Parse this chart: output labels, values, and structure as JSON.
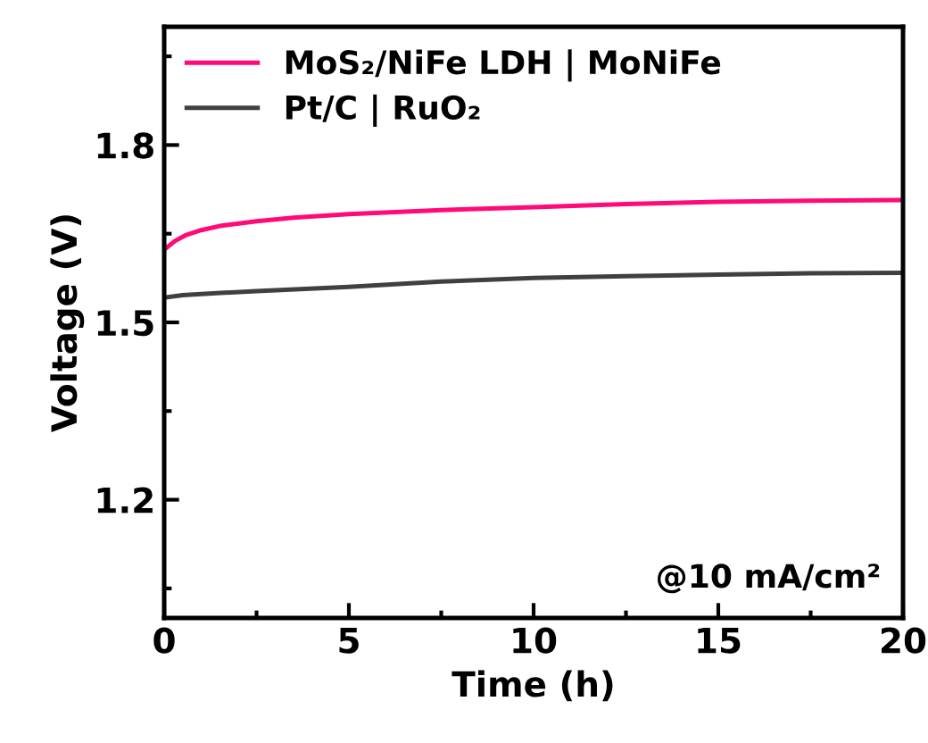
{
  "chart_data": {
    "type": "line",
    "xlabel": "Time (h)",
    "ylabel": "Voltage (V)",
    "annotations": [
      "@10 mA/cm²"
    ],
    "series": [
      {
        "name": "MoS₂/NiFe LDH | MoNiFe",
        "color": "#ff0a78",
        "x": [
          0,
          0.3,
          0.6,
          1,
          1.5,
          2.5,
          3.5,
          5,
          7.5,
          10,
          12.5,
          15,
          17.5,
          20
        ],
        "values": [
          1.623,
          1.638,
          1.648,
          1.656,
          1.663,
          1.671,
          1.677,
          1.683,
          1.69,
          1.695,
          1.7,
          1.704,
          1.706,
          1.707
        ]
      },
      {
        "name": "Pt/C | RuO₂",
        "color": "#404040",
        "x": [
          0,
          0.5,
          1,
          2.5,
          5,
          7.5,
          10,
          12.5,
          15,
          17.5,
          20
        ],
        "values": [
          1.542,
          1.546,
          1.548,
          1.553,
          1.56,
          1.569,
          1.575,
          1.578,
          1.581,
          1.583,
          1.584
        ]
      }
    ],
    "xlim": [
      0,
      20
    ],
    "xticks": [
      0,
      5,
      10,
      15,
      20
    ],
    "ylim": [
      1.0,
      2.0
    ],
    "yticks": [
      1.2,
      1.5,
      1.8
    ],
    "legend": "top left",
    "grid": false,
    "marker": "none",
    "line_style": "solid"
  }
}
